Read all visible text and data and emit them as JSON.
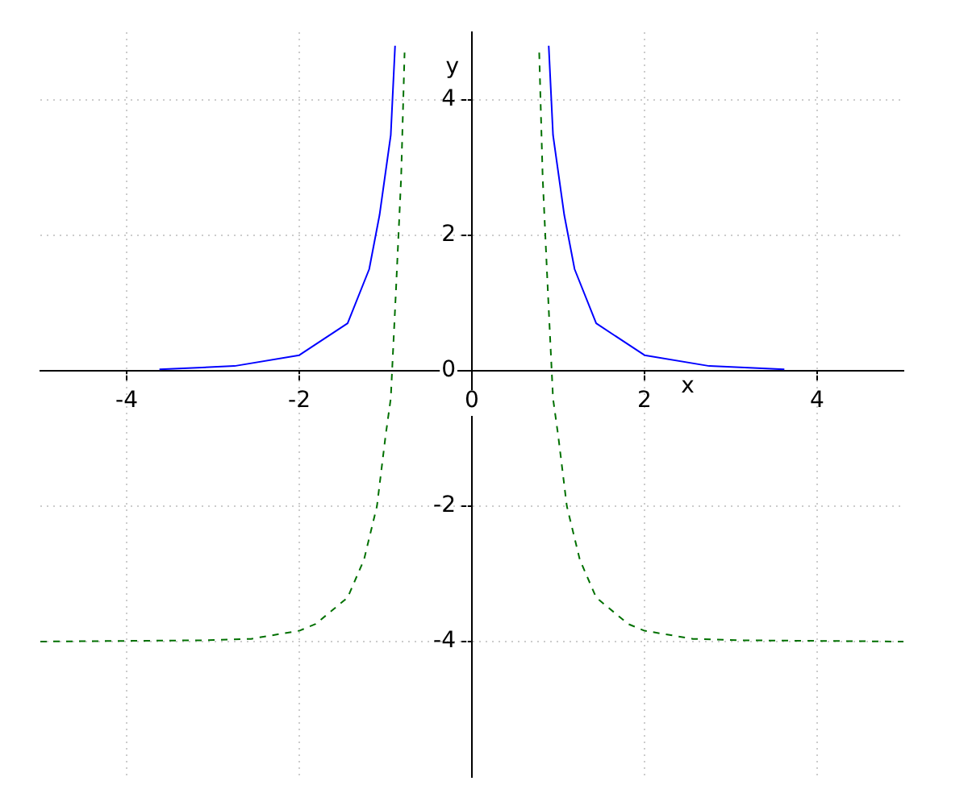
{
  "chart_data": {
    "type": "line",
    "xlabel": "x",
    "ylabel": "y",
    "xlim": [
      -5,
      5
    ],
    "ylim": [
      -6,
      5
    ],
    "xticks": [
      -4,
      -2,
      0,
      2,
      4
    ],
    "yticks": [
      -4,
      -2,
      0,
      2,
      4
    ],
    "grid": true,
    "legend": false,
    "marker": "none",
    "series": [
      {
        "color": "#0000ff",
        "line_style": "solid",
        "x": [
          -3.62,
          -2.75,
          -2.0,
          -1.44,
          -1.19,
          -1.07,
          -0.94,
          -0.89,
          0,
          0.89,
          0.94,
          1.07,
          1.19,
          1.44,
          2.0,
          2.75,
          3.62
        ],
        "values": [
          0.02,
          0.07,
          0.23,
          0.7,
          1.5,
          2.3,
          3.48,
          4.8,
          null,
          4.8,
          3.48,
          2.3,
          1.5,
          0.7,
          0.23,
          0.07,
          0.02
        ]
      },
      {
        "color": "#007000",
        "line_style": "dashed",
        "x": [
          -5.0,
          -3.06,
          -2.56,
          -2.0,
          -1.81,
          -1.44,
          -1.25,
          -1.1,
          -1.0,
          -0.94,
          -0.88,
          -0.82,
          -0.78,
          0,
          0.78,
          0.82,
          0.88,
          0.94,
          1.0,
          1.1,
          1.25,
          1.44,
          1.81,
          2.0,
          2.56,
          3.06,
          5.0
        ],
        "values": [
          -4.0,
          -3.98,
          -3.96,
          -3.84,
          -3.74,
          -3.35,
          -2.79,
          -2.0,
          -0.96,
          -0.41,
          1.18,
          2.85,
          4.7,
          null,
          4.7,
          2.85,
          1.18,
          -0.41,
          -0.96,
          -2.0,
          -2.79,
          -3.35,
          -3.74,
          -3.84,
          -3.96,
          -3.98,
          -4.0
        ]
      }
    ]
  }
}
